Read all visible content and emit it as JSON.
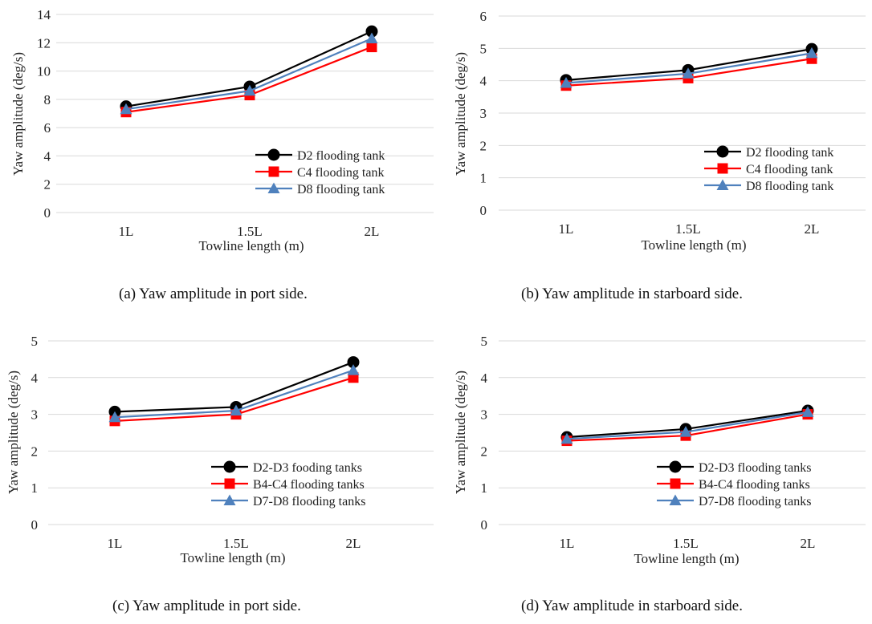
{
  "chart_data": [
    {
      "type": "line",
      "caption": "(a)   Yaw amplitude in port side.",
      "xlabel": "Towline length (m)",
      "ylabel": "Yaw amplitude (deg/s)",
      "categories": [
        "1L",
        "1.5L",
        "2L"
      ],
      "ylim": [
        0,
        14
      ],
      "yticks": [
        0,
        2,
        4,
        6,
        8,
        10,
        12,
        14
      ],
      "grid": "horizontal",
      "legend_position": "bottom-right",
      "series": [
        {
          "name": "D2 flooding tank",
          "values": [
            7.5,
            8.9,
            12.8
          ],
          "color": "#000000",
          "marker": "circle"
        },
        {
          "name": "C4 flooding tank",
          "values": [
            7.1,
            8.3,
            11.7
          ],
          "color": "#ff0000",
          "marker": "square"
        },
        {
          "name": "D8 flooding tank",
          "values": [
            7.3,
            8.6,
            12.3
          ],
          "color": "#4f81bd",
          "marker": "triangle"
        }
      ]
    },
    {
      "type": "line",
      "caption": "(b)   Yaw amplitude in starboard side.",
      "xlabel": "Towline length (m)",
      "ylabel": "Yaw amplitude (deg/s)",
      "categories": [
        "1L",
        "1.5L",
        "2L"
      ],
      "ylim": [
        0,
        6
      ],
      "yticks": [
        0,
        1,
        2,
        3,
        4,
        5,
        6
      ],
      "grid": "horizontal",
      "legend_position": "bottom-right",
      "series": [
        {
          "name": "D2 flooding tank",
          "values": [
            4.02,
            4.33,
            4.98
          ],
          "color": "#000000",
          "marker": "circle"
        },
        {
          "name": "C4 flooding tank",
          "values": [
            3.85,
            4.08,
            4.68
          ],
          "color": "#ff0000",
          "marker": "square"
        },
        {
          "name": "D8 flooding tank",
          "values": [
            3.93,
            4.22,
            4.85
          ],
          "color": "#4f81bd",
          "marker": "triangle"
        }
      ]
    },
    {
      "type": "line",
      "caption": "(c)   Yaw amplitude in port side.",
      "xlabel": "Towline length (m)",
      "ylabel": "Yaw amplitude (deg/s)",
      "categories": [
        "1L",
        "1.5L",
        "2L"
      ],
      "ylim": [
        0,
        5
      ],
      "yticks": [
        0,
        1,
        2,
        3,
        4,
        5
      ],
      "grid": "horizontal",
      "legend_position": "bottom-right",
      "series": [
        {
          "name": "D2-D3 fooding tanks",
          "values": [
            3.07,
            3.2,
            4.42
          ],
          "color": "#000000",
          "marker": "circle"
        },
        {
          "name": "B4-C4 flooding tanks",
          "values": [
            2.82,
            3.0,
            4.0
          ],
          "color": "#ff0000",
          "marker": "square"
        },
        {
          "name": "D7-D8 flooding tanks",
          "values": [
            2.92,
            3.1,
            4.2
          ],
          "color": "#4f81bd",
          "marker": "triangle"
        }
      ]
    },
    {
      "type": "line",
      "caption": "(d)   Yaw amplitude in starboard side.",
      "xlabel": "Towline length (m)",
      "ylabel": "Yaw amplitude (deg/s)",
      "categories": [
        "1L",
        "1.5L",
        "2L"
      ],
      "ylim": [
        0,
        5
      ],
      "yticks": [
        0,
        1,
        2,
        3,
        4,
        5
      ],
      "grid": "horizontal",
      "legend_position": "bottom-right",
      "series": [
        {
          "name": "D2-D3 flooding tanks",
          "values": [
            2.38,
            2.6,
            3.1
          ],
          "color": "#000000",
          "marker": "circle"
        },
        {
          "name": "B4-C4 flooding tanks",
          "values": [
            2.28,
            2.42,
            3.0
          ],
          "color": "#ff0000",
          "marker": "square"
        },
        {
          "name": "D7-D8 flooding tanks",
          "values": [
            2.33,
            2.52,
            3.06
          ],
          "color": "#4f81bd",
          "marker": "triangle"
        }
      ]
    }
  ]
}
